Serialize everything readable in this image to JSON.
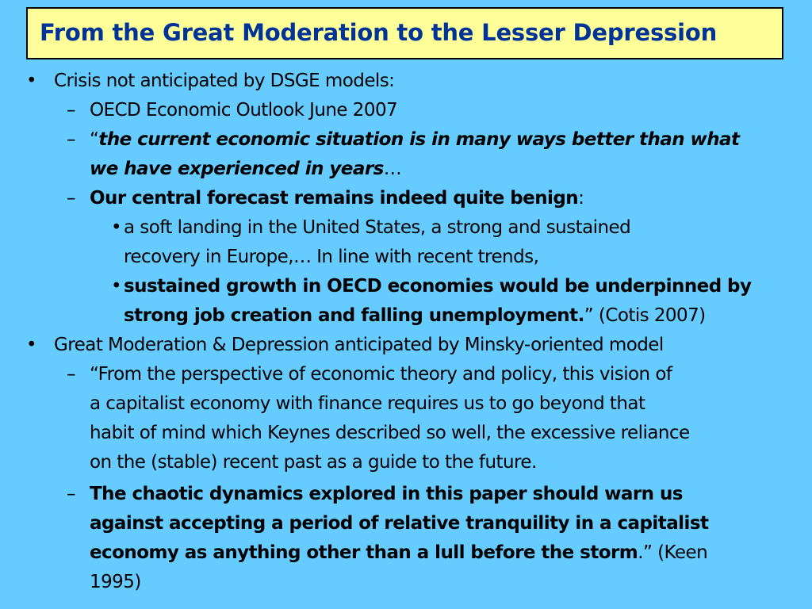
{
  "title": "From the Great Moderation to the Lesser Depression",
  "markers": {
    "bullet": "•",
    "dash": "–"
  },
  "items": {
    "b1": "Crisis not anticipated by DSGE models:",
    "b1_d1": "OECD Economic Outlook June 2007",
    "b1_d2_open": "“",
    "b1_d2_line1": "the current economic situation is in many ways better than what",
    "b1_d2_line2": "we have experienced in years",
    "b1_d2_tail": "…",
    "b1_d3_bold": "Our central forecast remains indeed quite benign",
    "b1_d3_tail": ":",
    "b1_d3_s1_line1": "a soft landing in the United States, a strong and sustained",
    "b1_d3_s1_line2": "recovery in Europe,…  In line with recent trends,",
    "b1_d3_s2_line1": "sustained growth in OECD economies would be underpinned by",
    "b1_d3_s2_line2_bold": "strong job creation and falling unemployment.",
    "b1_d3_s2_line2_tail": "” (Cotis 2007)",
    "b2": "Great Moderation & Depression anticipated by Minsky-oriented model",
    "b2_d1_line1": "“From the perspective of economic theory and policy, this vision of",
    "b2_d1_line2": "a capitalist economy with finance requires us to go beyond that",
    "b2_d1_line3": "habit of mind which Keynes described so well, the excessive reliance",
    "b2_d1_line4": "on the (stable) recent past as a guide to the future.",
    "b2_d2_line1": "The chaotic dynamics explored in this paper should warn us",
    "b2_d2_line2": "against accepting a period of relative tranquility in a capitalist",
    "b2_d2_line3_bold": "economy as anything other than a lull before the storm",
    "b2_d2_line3_tail": ".” (Keen",
    "b2_d2_line4": "1995)"
  }
}
